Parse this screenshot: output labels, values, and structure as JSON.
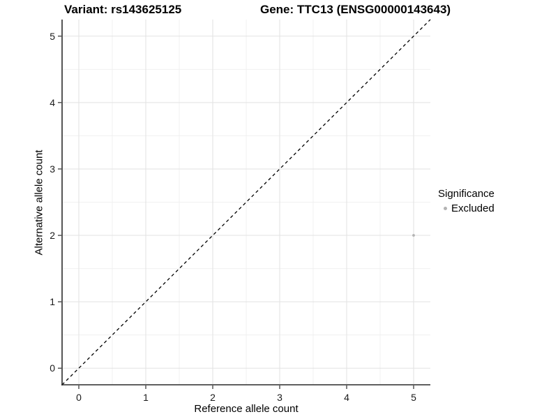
{
  "header": {
    "title_left": "Variant: rs143625125",
    "title_right": "Gene: TTC13 (ENSG00000143643)"
  },
  "chart_data": {
    "type": "scatter",
    "title": "Variant: rs143625125        Gene: TTC13 (ENSG00000143643)",
    "xlabel": "Reference allele count",
    "ylabel": "Alternative allele count",
    "xlim": [
      -0.25,
      5.25
    ],
    "ylim": [
      -0.25,
      5.25
    ],
    "xticks": [
      0,
      1,
      2,
      3,
      4,
      5
    ],
    "yticks": [
      0,
      1,
      2,
      3,
      4,
      5
    ],
    "xticks_minor": [
      0.5,
      1.5,
      2.5,
      3.5,
      4.5
    ],
    "yticks_minor": [
      0.5,
      1.5,
      2.5,
      3.5,
      4.5
    ],
    "grid": "major+minor",
    "reference_line": {
      "type": "identity",
      "x1": -0.25,
      "y1": -0.25,
      "x2": 5.25,
      "y2": 5.25,
      "style": "dashed",
      "color": "#000000"
    },
    "series": [
      {
        "name": "Excluded",
        "marker": "circle",
        "color": "#b3b3b3",
        "marker_radius_px": 1.9,
        "points": [
          {
            "x": 5,
            "y": 2
          }
        ]
      }
    ],
    "legend": {
      "title": "Significance",
      "position": "right",
      "items": [
        {
          "label": "Excluded",
          "color": "#b3b3b3"
        }
      ]
    }
  },
  "colors": {
    "background": "#ffffff",
    "grid_major": "#e2e2e2",
    "grid_minor": "#f0f0f0",
    "axis_line": "#2b2b2b",
    "tick_mark": "#2b2b2b",
    "tick_label": "#1a1a1a",
    "text": "#000000",
    "point": "#b3b3b3"
  }
}
